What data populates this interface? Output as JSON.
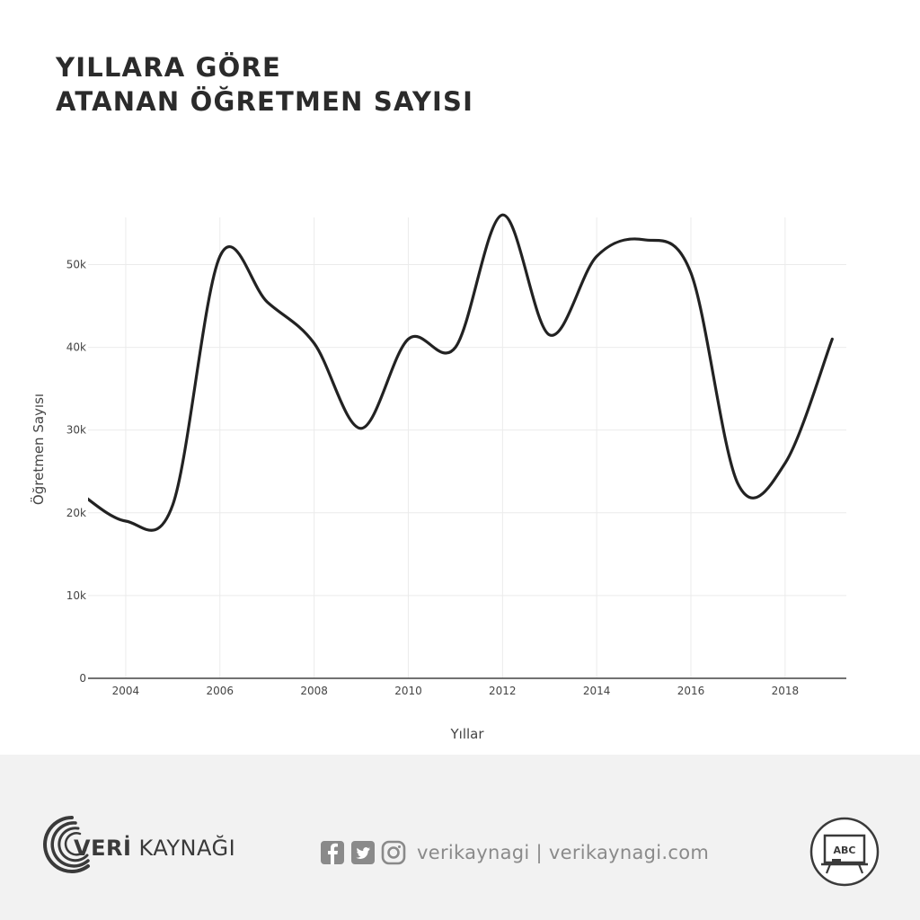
{
  "title": {
    "line1": "YILLARA GÖRE",
    "line2": "ATANAN ÖĞRETMEN SAYISI"
  },
  "chart_data": {
    "type": "line",
    "xlabel": "Yıllar",
    "ylabel": "Öğretmen Sayısı",
    "xlim": [
      2003.2,
      2019.3
    ],
    "ylim": [
      0,
      57000
    ],
    "x_ticks": [
      2004,
      2006,
      2008,
      2010,
      2012,
      2014,
      2016,
      2018
    ],
    "y_ticks": [
      0,
      10000,
      20000,
      30000,
      40000,
      50000
    ],
    "y_tick_labels": [
      "0",
      "10k",
      "20k",
      "30k",
      "40k",
      "50k"
    ],
    "grid": true,
    "line_color": "#222222",
    "x": [
      2003,
      2004,
      2005,
      2006,
      2007,
      2008,
      2009,
      2010,
      2011,
      2012,
      2013,
      2014,
      2015,
      2016,
      2017,
      2018,
      2019
    ],
    "values": [
      22500,
      19000,
      21000,
      51000,
      45500,
      40500,
      30200,
      41000,
      40000,
      56000,
      41500,
      51000,
      53000,
      49000,
      23500,
      26000,
      41000
    ]
  },
  "footer": {
    "brand_bold": "VERİ",
    "brand_rest": " KAYNAĞI",
    "social_text": "verikaynagi | verikaynagi.com",
    "badge_text": "ABC",
    "icons": [
      "facebook-icon",
      "twitter-icon",
      "instagram-icon"
    ],
    "accent": "#3a3a3a"
  }
}
